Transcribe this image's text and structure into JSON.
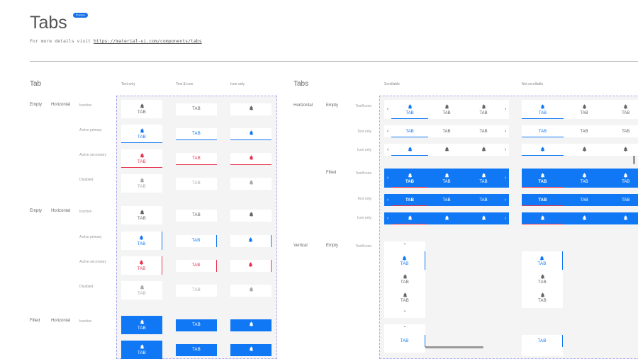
{
  "header": {
    "title": "Tabs",
    "badge": "Prototype",
    "details_prefix": "For more details visit ",
    "details_link": "https://material-ui.com/components/tabs"
  },
  "colors": {
    "primary": "#1178f5",
    "secondary": "#e8334f",
    "icon": "#666666",
    "disabled": "#aaaaaa"
  },
  "tab_section": {
    "title": "Tab",
    "columns": [
      "Text only",
      "Text & icon",
      "Icon only"
    ],
    "tab_label": "TAB",
    "rows": [
      {
        "group": "Empty",
        "orientation": "Horizontal",
        "state": "Inactive"
      },
      {
        "state": "Active primary"
      },
      {
        "state": "Active secondary"
      },
      {
        "state": "Disabled"
      },
      {
        "group": "Empty",
        "orientation": "Horizontal",
        "state": "Inactive"
      },
      {
        "state": "Active primary"
      },
      {
        "state": "Active secondary"
      },
      {
        "state": "Disabled"
      },
      {
        "group": "Filled",
        "orientation": "Horizontal",
        "state": "Inactive"
      },
      {
        "state": ""
      }
    ]
  },
  "tabs_section": {
    "title": "Tabs",
    "columns": [
      "Scrollable",
      "Not scrollable"
    ],
    "tab_label": "TAB",
    "rows": [
      {
        "orientation": "Horizontal",
        "variant": "Empty",
        "content": "Text/Icons"
      },
      {
        "content": "Text only"
      },
      {
        "content": "Icon only"
      },
      {
        "variant": "Filled",
        "content": "Text/Icons"
      },
      {
        "content": "Text only"
      },
      {
        "content": "Icon only"
      },
      {
        "orientation": "Vertical",
        "variant": "Empty",
        "content": "Text/Icons"
      }
    ],
    "icons": {
      "left": "chevron-left-icon",
      "right": "chevron-right-icon",
      "up": "chevron-up-icon",
      "down": "chevron-down-icon",
      "tab": "bell-icon"
    }
  }
}
